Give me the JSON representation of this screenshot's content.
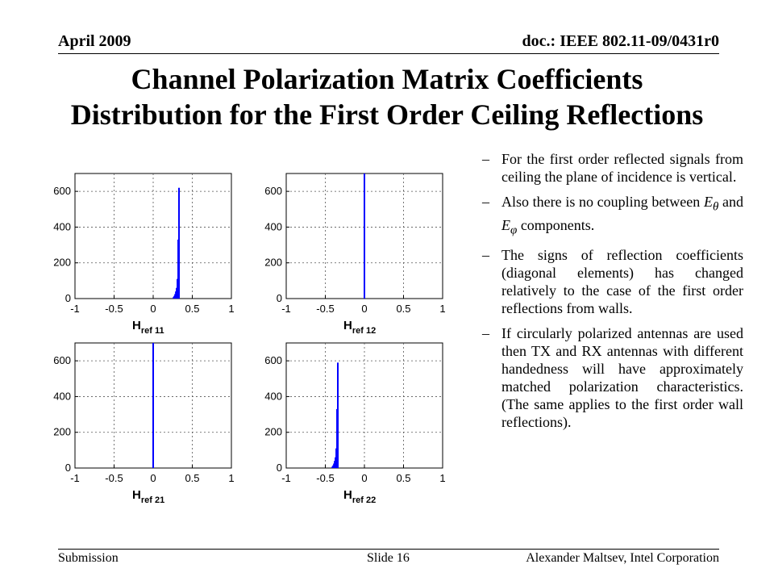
{
  "header": {
    "date": "April 2009",
    "doc": "doc.: IEEE 802.11-09/0431r0"
  },
  "title": {
    "line1": "Channel Polarization  Matrix Coefficients",
    "line2": "Distribution for the First Order Ceiling Reflections"
  },
  "bullets": {
    "dash": "–",
    "b1": "For the first order reflected signals from ceiling the plane of incidence is vertical.",
    "b2_pre": "Also there is no coupling between ",
    "b2_sym1": "E",
    "b2_sub1": "θ",
    "b2_mid": " and ",
    "b2_sym2": "E",
    "b2_sub2": "φ",
    "b2_post": " components.",
    "b3": "The signs of reflection coefficients (diagonal elements) has changed relatively to the case of the first order reflections from walls.",
    "b4": "If circularly polarized antennas are used then TX and RX antennas with different handedness will have approximately matched polarization characteristics. (The same applies to the first order wall reflections)."
  },
  "footer": {
    "left": "Submission",
    "center": "Slide 16",
    "right": "Alexander Maltsev, Intel Corporation"
  },
  "chart_data": [
    {
      "type": "bar",
      "xlabel_main": "H",
      "xlabel_sub": "ref 11",
      "xlim": [
        -1,
        1
      ],
      "ylim": [
        0,
        700
      ],
      "x_ticks": [
        "-1",
        "-0.5",
        "0",
        "0.5",
        "1"
      ],
      "y_ticks": [
        "0",
        "200",
        "400",
        "600"
      ],
      "grid": true,
      "color": "#0000ff",
      "x": [
        0.26,
        0.27,
        0.28,
        0.29,
        0.3,
        0.31,
        0.32,
        0.33
      ],
      "values": [
        8,
        15,
        25,
        40,
        60,
        110,
        330,
        620
      ]
    },
    {
      "type": "bar",
      "xlabel_main": "H",
      "xlabel_sub": "ref 12",
      "xlim": [
        -1,
        1
      ],
      "ylim": [
        0,
        700
      ],
      "x_ticks": [
        "-1",
        "-0.5",
        "0",
        "0.5",
        "1"
      ],
      "y_ticks": [
        "0",
        "200",
        "400",
        "600"
      ],
      "grid": true,
      "color": "#0000ff",
      "x": [
        0
      ],
      "values": [
        700
      ]
    },
    {
      "type": "bar",
      "xlabel_main": "H",
      "xlabel_sub": "ref 21",
      "xlim": [
        -1,
        1
      ],
      "ylim": [
        0,
        700
      ],
      "x_ticks": [
        "-1",
        "-0.5",
        "0",
        "0.5",
        "1"
      ],
      "y_ticks": [
        "0",
        "200",
        "400",
        "600"
      ],
      "grid": true,
      "color": "#0000ff",
      "x": [
        0
      ],
      "values": [
        700
      ]
    },
    {
      "type": "bar",
      "xlabel_main": "H",
      "xlabel_sub": "ref 22",
      "xlim": [
        -1,
        1
      ],
      "ylim": [
        0,
        700
      ],
      "x_ticks": [
        "-1",
        "-0.5",
        "0",
        "0.5",
        "1"
      ],
      "y_ticks": [
        "0",
        "200",
        "400",
        "600"
      ],
      "grid": true,
      "color": "#0000ff",
      "x": [
        -0.41,
        -0.4,
        -0.39,
        -0.38,
        -0.37,
        -0.36,
        -0.35,
        -0.34
      ],
      "values": [
        8,
        15,
        25,
        40,
        60,
        110,
        330,
        590
      ]
    }
  ]
}
